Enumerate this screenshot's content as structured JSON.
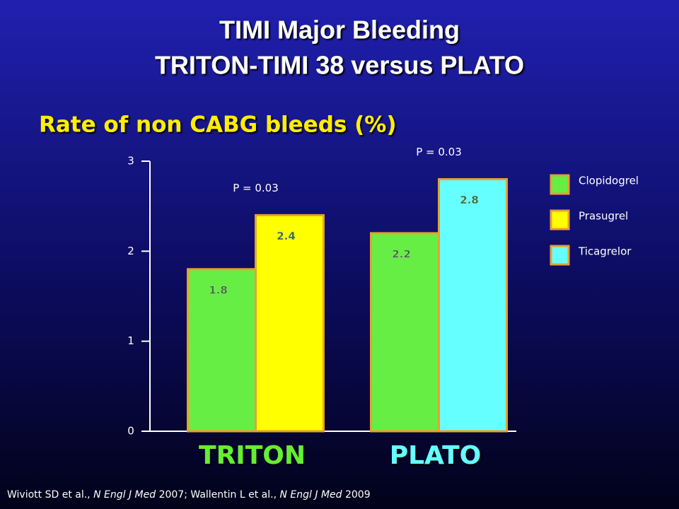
{
  "chart_data": {
    "type": "bar",
    "title": [
      "TIMI Major Bleeding",
      "TRITON-TIMI 38 versus PLATO"
    ],
    "subtitle": "Rate of non CABG bleeds (%)",
    "categories": [
      "TRITON",
      "PLATO"
    ],
    "category_colors": [
      "#66ee33",
      "#66ffff"
    ],
    "series": [
      {
        "name": "Clopidogrel",
        "color": "#66ee44",
        "values": [
          1.8,
          2.2
        ]
      },
      {
        "name": "Prasugrel",
        "color": "#ffff00",
        "values": [
          2.4,
          null
        ]
      },
      {
        "name": "Ticagrelor",
        "color": "#66ffff",
        "values": [
          null,
          2.8
        ]
      }
    ],
    "ylim": [
      0,
      3
    ],
    "yticks": [
      0,
      1,
      2,
      3
    ],
    "annotations": [
      "P = 0.03",
      "P = 0.03"
    ],
    "legend": "right",
    "footnote": [
      {
        "text": "Wiviott SD et al., ",
        "italic": false
      },
      {
        "text": "N Engl J Med",
        "italic": true
      },
      {
        "text": " 2007; Wallentin L et al., ",
        "italic": false
      },
      {
        "text": "N Engl J Med",
        "italic": true
      },
      {
        "text": " 2009",
        "italic": false
      }
    ]
  }
}
